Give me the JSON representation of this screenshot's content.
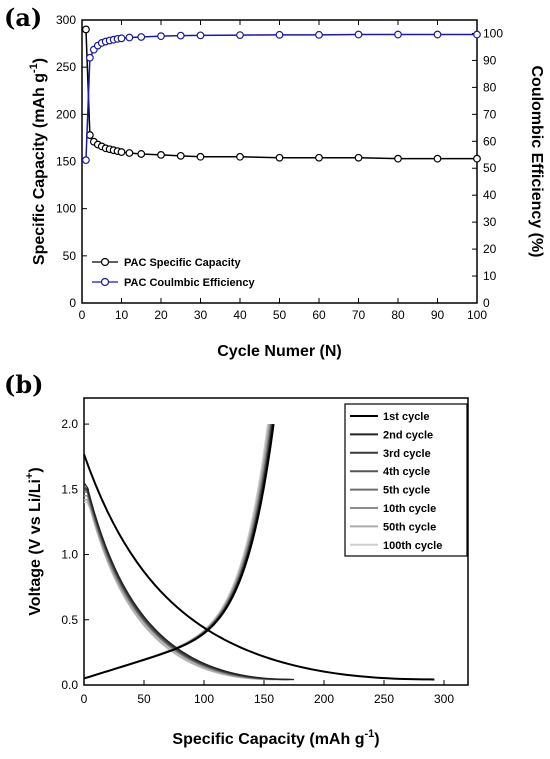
{
  "chart_data": [
    {
      "panel": "(a)",
      "type": "scatter",
      "xlabel": "Cycle Numer (N)",
      "ylabel": "Specific Capacity (mAh g-1)",
      "ylabel_parts": [
        "Specific Capacity (mAh g",
        "-1",
        ")"
      ],
      "y2label": "Coulombic Efficiency (%)",
      "xlim": [
        0,
        100
      ],
      "ylim": [
        0,
        300
      ],
      "y2lim": [
        0,
        105
      ],
      "xticks": [
        0,
        10,
        20,
        30,
        40,
        50,
        60,
        70,
        80,
        90,
        100
      ],
      "yticks": [
        0,
        50,
        100,
        150,
        200,
        250,
        300
      ],
      "y2ticks": [
        0,
        10,
        20,
        30,
        40,
        50,
        60,
        70,
        80,
        90,
        100
      ],
      "legend_position": "bottom-left",
      "series": [
        {
          "name": "PAC Specific Capacity",
          "axis": "left",
          "color": "#000000",
          "marker": "open-circle",
          "x": [
            1,
            2,
            3,
            4,
            5,
            6,
            7,
            8,
            9,
            10,
            12,
            15,
            20,
            25,
            30,
            40,
            50,
            60,
            70,
            80,
            90,
            100
          ],
          "y": [
            290,
            178,
            171,
            168,
            166,
            164,
            163,
            162,
            161,
            160,
            159,
            158,
            157,
            156,
            155,
            155,
            154,
            154,
            154,
            153,
            153,
            153
          ]
        },
        {
          "name": "PAC Coulmbic Efficiency",
          "axis": "right",
          "color": "#1a1aa6",
          "marker": "open-circle",
          "x": [
            1,
            2,
            3,
            4,
            5,
            6,
            7,
            8,
            9,
            10,
            12,
            15,
            20,
            25,
            30,
            40,
            50,
            60,
            70,
            80,
            90,
            100
          ],
          "y": [
            53,
            91,
            94,
            95.5,
            96.5,
            97,
            97.4,
            97.7,
            98,
            98.2,
            98.5,
            98.7,
            99,
            99.2,
            99.3,
            99.4,
            99.5,
            99.5,
            99.6,
            99.6,
            99.6,
            99.6
          ]
        }
      ]
    },
    {
      "panel": "(b)",
      "type": "line",
      "xlabel": "Specific Capacity (mAh g-1)",
      "xlabel_parts": [
        "Specific Capacity (mAh g",
        "-1",
        ")"
      ],
      "ylabel": "Voltage (V vs Li/Li+)",
      "ylabel_parts": [
        "Voltage (V vs Li/Li",
        "+",
        ")"
      ],
      "xlim": [
        0,
        320
      ],
      "ylim": [
        0,
        2.2
      ],
      "xticks": [
        0,
        50,
        100,
        150,
        200,
        250,
        300
      ],
      "yticks": [
        0.0,
        0.5,
        1.0,
        1.5,
        2.0
      ],
      "legend_position": "top-right",
      "series": [
        {
          "name": "1st cycle",
          "color": "#000000",
          "discharge_capacity": 292,
          "charge_capacity": 158,
          "start_voltage": 1.82
        },
        {
          "name": "2nd cycle",
          "color": "#222222",
          "discharge_capacity": 175,
          "charge_capacity": 157,
          "start_voltage": 1.55
        },
        {
          "name": "3rd cycle",
          "color": "#3a3a3a",
          "discharge_capacity": 172,
          "charge_capacity": 157,
          "start_voltage": 1.52
        },
        {
          "name": "4th cycle",
          "color": "#555555",
          "discharge_capacity": 170,
          "charge_capacity": 156,
          "start_voltage": 1.5
        },
        {
          "name": "5th cycle",
          "color": "#6e6e6e",
          "discharge_capacity": 168,
          "charge_capacity": 156,
          "start_voltage": 1.48
        },
        {
          "name": "10th cycle",
          "color": "#8c8c8c",
          "discharge_capacity": 165,
          "charge_capacity": 155,
          "start_voltage": 1.45
        },
        {
          "name": "50th cycle",
          "color": "#ababab",
          "discharge_capacity": 160,
          "charge_capacity": 154,
          "start_voltage": 1.42
        },
        {
          "name": "100th cycle",
          "color": "#cfcfcf",
          "discharge_capacity": 158,
          "charge_capacity": 153,
          "start_voltage": 1.4
        }
      ]
    }
  ]
}
